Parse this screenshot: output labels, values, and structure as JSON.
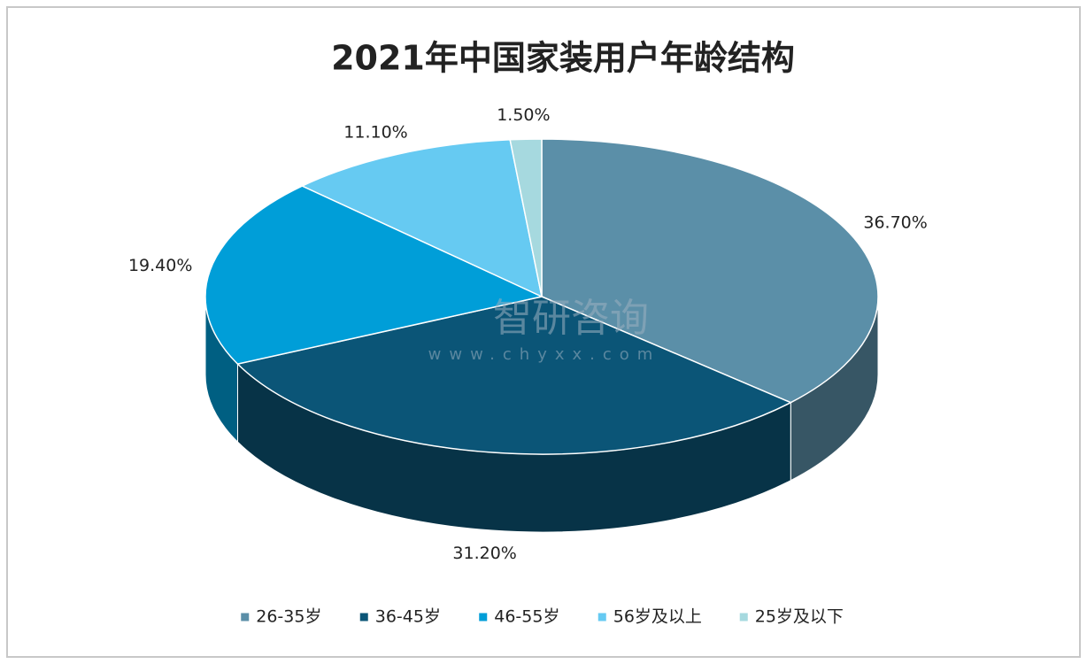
{
  "chart_data": {
    "type": "pie",
    "title": "2021年中国家装用户年龄结构",
    "categories": [
      "26-35岁",
      "36-45岁",
      "46-55岁",
      "56岁及以上",
      "25岁及以下"
    ],
    "values": [
      36.7,
      31.2,
      19.4,
      11.1,
      1.5
    ],
    "value_labels": [
      "36.70%",
      "31.20%",
      "19.40%",
      "11.10%",
      "1.50%"
    ],
    "colors": [
      "#5b8fa8",
      "#0b5577",
      "#009ed8",
      "#66caf2",
      "#a6d9df"
    ],
    "legend": "bottom",
    "watermark": {
      "name": "智研咨询",
      "url": "www.chyxx.com"
    }
  }
}
